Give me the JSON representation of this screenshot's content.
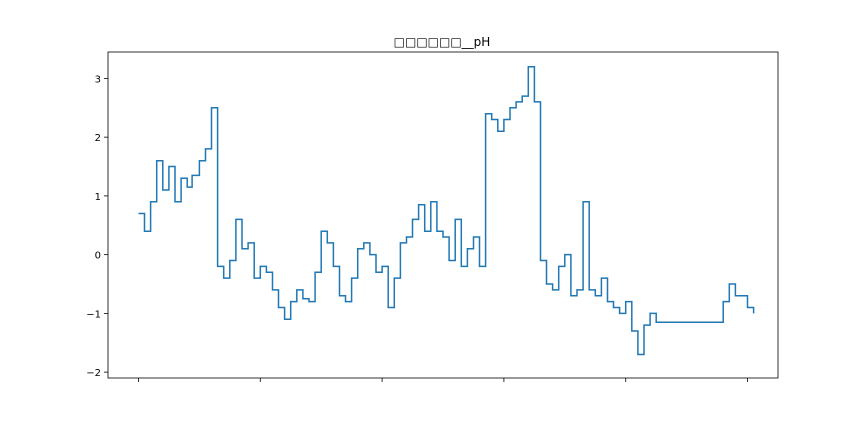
{
  "chart_data": {
    "type": "line",
    "title": "□□□□□□__pH",
    "xlabel": "",
    "ylabel": "",
    "ylim": [
      -2.1,
      3.45
    ],
    "xlim": [
      -0.05,
      1.05
    ],
    "yticks": [
      -2,
      -1,
      0,
      1,
      2,
      3
    ],
    "xticks_count": 6,
    "xtick_labels_visible": false,
    "grid": false,
    "legend": "none",
    "line_color": "#1f77b4",
    "series": [
      {
        "x": [
          0.0,
          0.01,
          0.02,
          0.03,
          0.04,
          0.05,
          0.06,
          0.07,
          0.08,
          0.088,
          0.092,
          0.1,
          0.11,
          0.12,
          0.13,
          0.14,
          0.15,
          0.16,
          0.17,
          0.18,
          0.19,
          0.2,
          0.21,
          0.22,
          0.23,
          0.24,
          0.25,
          0.26,
          0.27,
          0.28,
          0.29,
          0.3,
          0.31,
          0.32,
          0.33,
          0.34,
          0.35,
          0.36,
          0.37,
          0.38,
          0.39,
          0.4,
          0.41,
          0.42,
          0.43,
          0.44,
          0.45,
          0.46,
          0.47,
          0.48,
          0.49,
          0.5,
          0.51,
          0.52,
          0.53,
          0.54,
          0.55,
          0.56,
          0.57,
          0.58,
          0.59,
          0.6,
          0.61,
          0.62,
          0.63,
          0.64,
          0.65,
          0.66,
          0.67,
          0.68,
          0.69,
          0.7,
          0.71,
          0.72,
          0.73,
          0.74,
          0.75,
          0.76,
          0.77,
          0.78,
          0.79,
          0.8,
          0.81,
          0.82,
          0.83,
          0.84,
          0.85,
          0.86,
          0.87,
          0.88,
          0.89,
          0.9,
          0.91,
          0.92,
          0.93,
          0.94,
          0.95,
          0.96,
          0.97,
          0.98,
          0.99,
          1.0,
          1.01
        ],
        "y": [
          0.7,
          0.4,
          0.9,
          1.6,
          1.1,
          1.5,
          0.9,
          1.3,
          1.15,
          1.35,
          1.35,
          1.6,
          1.8,
          2.5,
          -0.2,
          -0.4,
          -0.1,
          0.6,
          0.1,
          0.2,
          -0.4,
          -0.2,
          -0.3,
          -0.6,
          -0.9,
          -1.1,
          -0.8,
          -0.6,
          -0.75,
          -0.8,
          -0.3,
          0.4,
          0.2,
          -0.2,
          -0.7,
          -0.8,
          -0.4,
          0.1,
          0.2,
          0.0,
          -0.3,
          -0.2,
          -0.9,
          -0.4,
          0.2,
          0.3,
          0.6,
          0.85,
          0.4,
          0.9,
          0.4,
          0.3,
          -0.1,
          0.6,
          -0.2,
          0.1,
          0.3,
          -0.2,
          2.4,
          2.3,
          2.1,
          2.3,
          2.5,
          2.6,
          2.7,
          3.2,
          2.6,
          -0.1,
          -0.5,
          -0.6,
          -0.2,
          0.0,
          -0.7,
          -0.6,
          0.9,
          -0.6,
          -0.7,
          -0.4,
          -0.8,
          -0.9,
          -1.0,
          -0.8,
          -1.3,
          -1.7,
          -1.2,
          -1.0,
          -1.15,
          -1.15,
          -1.15,
          -1.15,
          -1.15,
          -1.15,
          -1.15,
          -1.15,
          -1.15,
          -1.15,
          -1.15,
          -0.8,
          -0.5,
          -0.7,
          -0.7,
          -0.9,
          -1.0
        ]
      }
    ]
  }
}
